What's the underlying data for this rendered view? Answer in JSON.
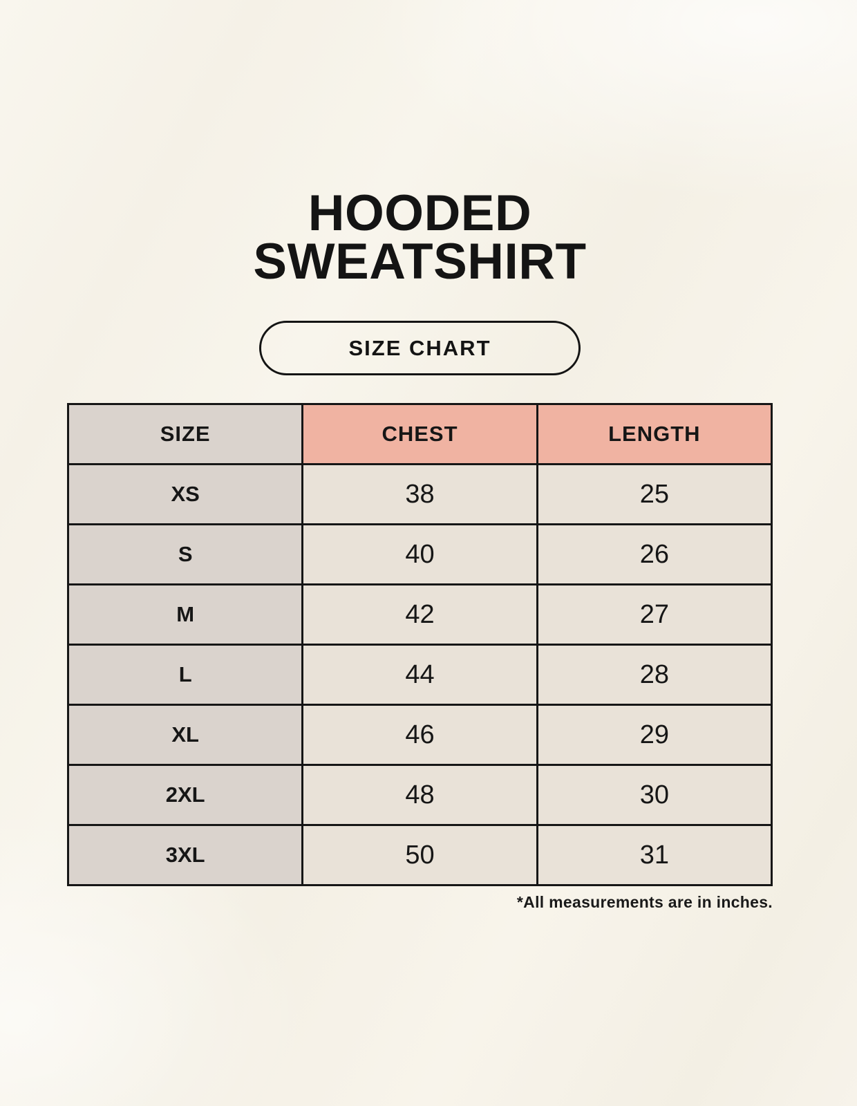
{
  "page": {
    "title_line1": "HOODED",
    "title_line2": "SWEATSHIRT",
    "size_chart_label": "SIZE CHART",
    "footnote": "*All measurements are in inches."
  },
  "colors": {
    "background": "#f6f2e8",
    "header_accent_pink": "#f0b3a2",
    "size_column_gray": "#dad3cd",
    "value_cell_cream": "#e9e2d8",
    "border_black": "#161616"
  },
  "chart_data": {
    "type": "table",
    "columns": [
      "SIZE",
      "CHEST",
      "LENGTH"
    ],
    "units": "inches",
    "rows": [
      {
        "size": "XS",
        "chest": 38,
        "length": 25
      },
      {
        "size": "S",
        "chest": 40,
        "length": 26
      },
      {
        "size": "M",
        "chest": 42,
        "length": 27
      },
      {
        "size": "L",
        "chest": 44,
        "length": 28
      },
      {
        "size": "XL",
        "chest": 46,
        "length": 29
      },
      {
        "size": "2XL",
        "chest": 48,
        "length": 30
      },
      {
        "size": "3XL",
        "chest": 50,
        "length": 31
      }
    ]
  }
}
